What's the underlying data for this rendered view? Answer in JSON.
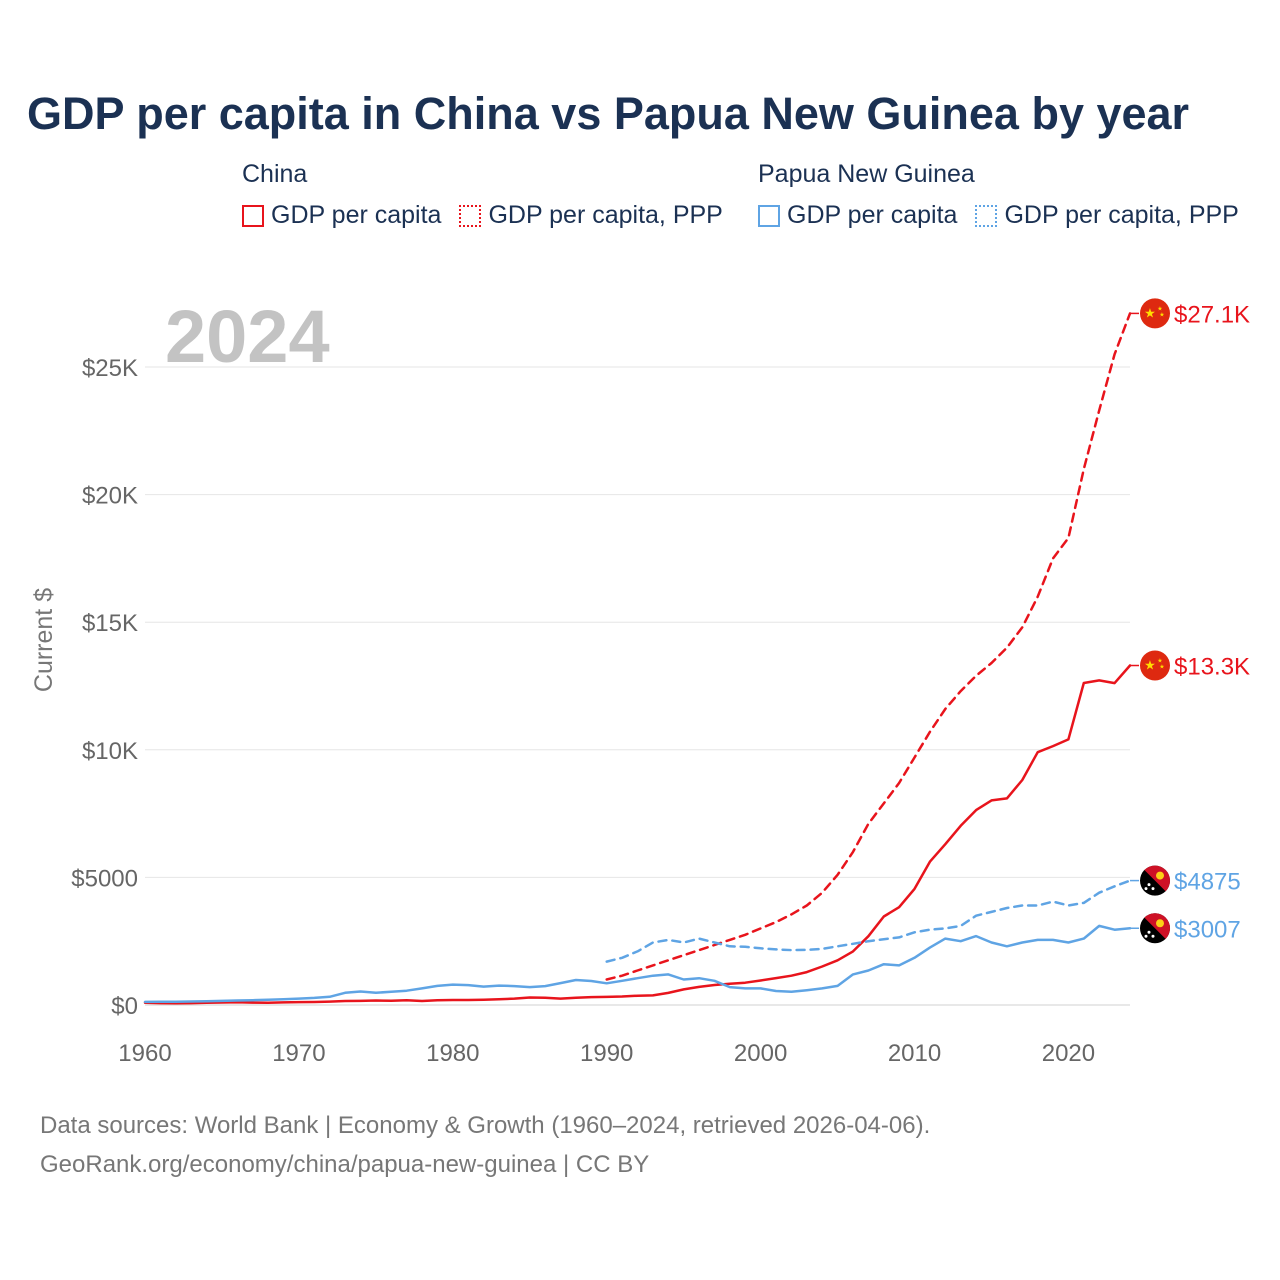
{
  "title": "GDP per capita in China vs Papua New Guinea by year",
  "legend": {
    "groups": [
      {
        "name": "China",
        "color": "#e8141c",
        "items": [
          {
            "label": "GDP per capita",
            "style": "solid"
          },
          {
            "label": "GDP per capita, PPP",
            "style": "dotted"
          }
        ]
      },
      {
        "name": "Papua New Guinea",
        "color": "#5fa4e4",
        "items": [
          {
            "label": "GDP per capita",
            "style": "solid"
          },
          {
            "label": "GDP per capita, PPP",
            "style": "dotted"
          }
        ]
      }
    ]
  },
  "year_label": "2024",
  "footer": {
    "line1": "Data sources: World Bank | Economy & Growth (1960–2024, retrieved 2026-04-06).",
    "line2": "GeoRank.org/economy/china/papua-new-guinea | CC BY"
  },
  "chart_data": {
    "type": "line",
    "title": "GDP per capita in China vs Papua New Guinea by year",
    "xlabel": "",
    "ylabel": "Current $",
    "xlim": [
      1960,
      2024
    ],
    "ylim": [
      0,
      27500
    ],
    "x_ticks": [
      1960,
      1970,
      1980,
      1990,
      2000,
      2010,
      2020
    ],
    "x_tick_labels": [
      "1960",
      "1970",
      "1980",
      "1990",
      "2000",
      "2010",
      "2020"
    ],
    "y_ticks": [
      0,
      5000,
      10000,
      15000,
      20000,
      25000
    ],
    "y_tick_labels": [
      "$0",
      "$5000",
      "$10K",
      "$15K",
      "$20K",
      "$25K"
    ],
    "grid": true,
    "series": [
      {
        "name": "China GDP per capita PPP",
        "country": "China",
        "metric": "GDP per capita, PPP",
        "color": "#e8141c",
        "dash": "dashed",
        "end_label": "$27.1K",
        "x": [
          1990,
          1991,
          1992,
          1993,
          1994,
          1995,
          1996,
          1997,
          1998,
          1999,
          2000,
          2001,
          2002,
          2003,
          2004,
          2005,
          2006,
          2007,
          2008,
          2009,
          2010,
          2011,
          2012,
          2013,
          2014,
          2015,
          2016,
          2017,
          2018,
          2019,
          2020,
          2021,
          2022,
          2023,
          2024
        ],
        "values": [
          1000,
          1150,
          1350,
          1550,
          1750,
          1950,
          2150,
          2350,
          2550,
          2750,
          3000,
          3250,
          3550,
          3900,
          4400,
          5100,
          6000,
          7100,
          7900,
          8700,
          9700,
          10700,
          11600,
          12300,
          12900,
          13400,
          14000,
          14800,
          16000,
          17500,
          18300,
          21000,
          23300,
          25500,
          27100
        ]
      },
      {
        "name": "China GDP per capita",
        "country": "China",
        "metric": "GDP per capita",
        "color": "#e8141c",
        "dash": "solid",
        "end_label": "$13.3K",
        "x": [
          1960,
          1961,
          1962,
          1963,
          1964,
          1965,
          1966,
          1967,
          1968,
          1969,
          1970,
          1971,
          1972,
          1973,
          1974,
          1975,
          1976,
          1977,
          1978,
          1979,
          1980,
          1981,
          1982,
          1983,
          1984,
          1985,
          1986,
          1987,
          1988,
          1989,
          1990,
          1991,
          1992,
          1993,
          1994,
          1995,
          1996,
          1997,
          1998,
          1999,
          2000,
          2001,
          2002,
          2003,
          2004,
          2005,
          2006,
          2007,
          2008,
          2009,
          2010,
          2011,
          2012,
          2013,
          2014,
          2015,
          2016,
          2017,
          2018,
          2019,
          2020,
          2021,
          2022,
          2023,
          2024
        ],
        "values": [
          90,
          76,
          71,
          74,
          85,
          98,
          104,
          96,
          91,
          100,
          113,
          119,
          132,
          157,
          160,
          178,
          165,
          185,
          156,
          183,
          195,
          197,
          203,
          225,
          250,
          294,
          282,
          251,
          284,
          311,
          318,
          333,
          366,
          377,
          473,
          610,
          709,
          782,
          829,
          873,
          959,
          1053,
          1149,
          1289,
          1509,
          1753,
          2099,
          2694,
          3468,
          3832,
          4550,
          5614,
          6301,
          7020,
          7636,
          8016,
          8094,
          8817,
          9905,
          10144,
          10409,
          12618,
          12720,
          12614,
          13303
        ]
      },
      {
        "name": "Papua New Guinea GDP per capita PPP",
        "country": "Papua New Guinea",
        "metric": "GDP per capita, PPP",
        "color": "#5fa4e4",
        "dash": "dashed",
        "end_label": "$4875",
        "x": [
          1990,
          1991,
          1992,
          1993,
          1994,
          1995,
          1996,
          1997,
          1998,
          1999,
          2000,
          2001,
          2002,
          2003,
          2004,
          2005,
          2006,
          2007,
          2008,
          2009,
          2010,
          2011,
          2012,
          2013,
          2014,
          2015,
          2016,
          2017,
          2018,
          2019,
          2020,
          2021,
          2022,
          2023,
          2024
        ],
        "values": [
          1700,
          1850,
          2100,
          2450,
          2550,
          2450,
          2600,
          2450,
          2300,
          2280,
          2220,
          2180,
          2150,
          2160,
          2200,
          2300,
          2400,
          2500,
          2580,
          2650,
          2850,
          2950,
          3000,
          3100,
          3500,
          3650,
          3800,
          3900,
          3900,
          4050,
          3900,
          4000,
          4400,
          4650,
          4875
        ]
      },
      {
        "name": "Papua New Guinea GDP per capita",
        "country": "Papua New Guinea",
        "metric": "GDP per capita",
        "color": "#5fa4e4",
        "dash": "solid",
        "end_label": "$3007",
        "x": [
          1960,
          1961,
          1962,
          1963,
          1964,
          1965,
          1966,
          1967,
          1968,
          1969,
          1970,
          1971,
          1972,
          1973,
          1974,
          1975,
          1976,
          1977,
          1978,
          1979,
          1980,
          1981,
          1982,
          1983,
          1984,
          1985,
          1986,
          1987,
          1988,
          1989,
          1990,
          1991,
          1992,
          1993,
          1994,
          1995,
          1996,
          1997,
          1998,
          1999,
          2000,
          2001,
          2002,
          2003,
          2004,
          2005,
          2006,
          2007,
          2008,
          2009,
          2010,
          2011,
          2012,
          2013,
          2014,
          2015,
          2016,
          2017,
          2018,
          2019,
          2020,
          2021,
          2022,
          2023,
          2024
        ],
        "values": [
          120,
          125,
          130,
          138,
          148,
          160,
          175,
          190,
          205,
          225,
          250,
          280,
          320,
          480,
          530,
          480,
          520,
          560,
          650,
          750,
          800,
          780,
          720,
          760,
          740,
          700,
          740,
          860,
          980,
          940,
          850,
          950,
          1050,
          1150,
          1200,
          1000,
          1050,
          950,
          700,
          650,
          650,
          550,
          520,
          580,
          650,
          750,
          1200,
          1350,
          1600,
          1550,
          1850,
          2250,
          2600,
          2500,
          2700,
          2450,
          2300,
          2450,
          2550,
          2550,
          2450,
          2600,
          3100,
          2950,
          3007
        ]
      }
    ]
  }
}
